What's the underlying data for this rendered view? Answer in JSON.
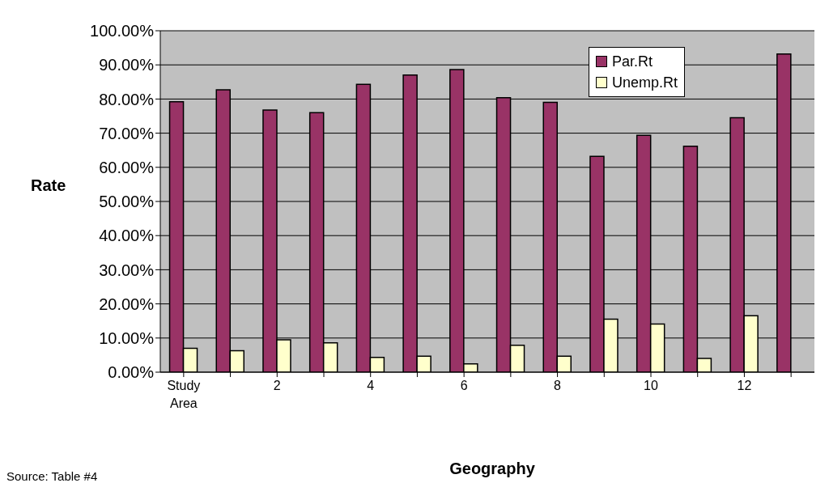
{
  "chart_data": {
    "type": "bar",
    "xlabel": "Geography",
    "ylabel": "Rate",
    "categories": [
      "Study Area",
      null,
      "2",
      null,
      "4",
      null,
      "6",
      null,
      "8",
      null,
      "10",
      null,
      "12",
      null
    ],
    "series": [
      {
        "name": "Par.Rt",
        "color": "#993366",
        "values": [
          79.2,
          82.7,
          76.8,
          76.0,
          84.3,
          87.0,
          88.6,
          80.4,
          79.0,
          63.2,
          69.4,
          66.2,
          74.5,
          93.2
        ]
      },
      {
        "name": "Unemp.Rt",
        "color": "#ffffcc",
        "values": [
          7.0,
          6.3,
          9.5,
          8.6,
          4.3,
          4.7,
          2.4,
          7.9,
          4.7,
          15.5,
          14.1,
          4.0,
          16.5,
          0
        ]
      }
    ],
    "ylim": [
      0,
      100
    ],
    "yticks": [
      {
        "value": 0,
        "label": "0.00%"
      },
      {
        "value": 10,
        "label": "10.00%"
      },
      {
        "value": 20,
        "label": "20.00%"
      },
      {
        "value": 30,
        "label": "30.00%"
      },
      {
        "value": 40,
        "label": "40.00%"
      },
      {
        "value": 50,
        "label": "50.00%"
      },
      {
        "value": 60,
        "label": "60.00%"
      },
      {
        "value": 70,
        "label": "70.00%"
      },
      {
        "value": 80,
        "label": "80.00%"
      },
      {
        "value": 90,
        "label": "90.00%"
      },
      {
        "value": 100,
        "label": "100.00%"
      }
    ],
    "grid": "y",
    "legend": "top right",
    "annotations": [
      "Source: Table #4"
    ]
  }
}
